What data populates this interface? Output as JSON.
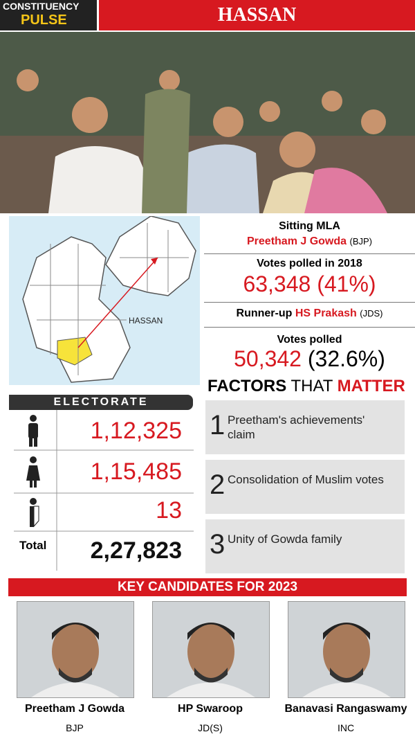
{
  "header": {
    "kicker": "CONSTITUENCY",
    "pulse": "PULSE",
    "title": "HASSAN"
  },
  "map": {
    "label": "HASSAN"
  },
  "stats": {
    "sitting_label": "Sitting MLA",
    "sitting_name": "Preetham J Gowda",
    "sitting_party": "(BJP)",
    "votes_2018_label": "Votes polled in 2018",
    "votes_2018": "63,348",
    "votes_2018_pct": "(41%)",
    "runner_label": "Runner-up",
    "runner_name": "HS Prakash",
    "runner_party": "(JDS)",
    "runner_votes_label": "Votes polled",
    "runner_votes": "50,342",
    "runner_votes_pct": "(32.6%)"
  },
  "factors": {
    "title_a": "FACTORS",
    "title_b": "THAT",
    "title_c": "MATTER",
    "items": [
      {
        "num": "1",
        "text": "Preetham's achievements' claim"
      },
      {
        "num": "2",
        "text": "Consolidation of Muslim votes"
      },
      {
        "num": "3",
        "text": "Unity of Gowda family"
      }
    ]
  },
  "electorate": {
    "title": "ELECTORATE",
    "male": "1,12,325",
    "female": "1,15,485",
    "other": "13",
    "total_label": "Total",
    "total": "2,27,823"
  },
  "candidates": {
    "title": "KEY CANDIDATES FOR 2023",
    "items": [
      {
        "name": "Preetham J Gowda",
        "party": "BJP"
      },
      {
        "name": "HP Swaroop",
        "party": "JD(S)"
      },
      {
        "name": "Banavasi Rangaswamy",
        "party": "INC"
      }
    ]
  }
}
